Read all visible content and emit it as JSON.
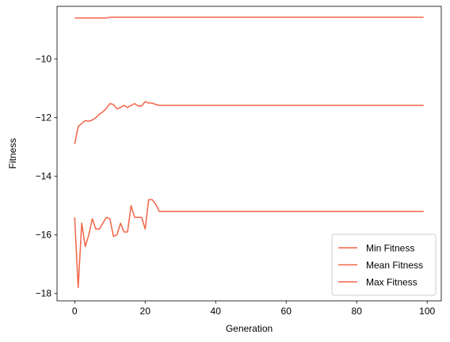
{
  "chart_data": {
    "type": "line",
    "title": "",
    "xlabel": "Generation",
    "ylabel": "Fitness",
    "xlim": [
      -5,
      104
    ],
    "ylim": [
      -18.25,
      -8.2
    ],
    "xticks": [
      0,
      20,
      40,
      60,
      80,
      100
    ],
    "yticks": [
      -18,
      -16,
      -14,
      -12,
      -10
    ],
    "xtick_labels": [
      "0",
      "20",
      "40",
      "60",
      "80",
      "100"
    ],
    "ytick_labels": [
      "−18",
      "−16",
      "−14",
      "−12",
      "−10"
    ],
    "grid": false,
    "legend": "lower-right",
    "color": "#f26447",
    "x": [
      0,
      1,
      2,
      3,
      4,
      5,
      6,
      7,
      8,
      9,
      10,
      11,
      12,
      13,
      14,
      15,
      16,
      17,
      18,
      19,
      20,
      21,
      22,
      23,
      24,
      25,
      26,
      27,
      28,
      29,
      30,
      31,
      32,
      33,
      34,
      35,
      36,
      37,
      38,
      39,
      40,
      41,
      42,
      43,
      44,
      45,
      46,
      47,
      48,
      49,
      50,
      51,
      52,
      53,
      54,
      55,
      56,
      57,
      58,
      59,
      60,
      61,
      62,
      63,
      64,
      65,
      66,
      67,
      68,
      69,
      70,
      71,
      72,
      73,
      74,
      75,
      76,
      77,
      78,
      79,
      80,
      81,
      82,
      83,
      84,
      85,
      86,
      87,
      88,
      89,
      90,
      91,
      92,
      93,
      94,
      95,
      96,
      97,
      98,
      99
    ],
    "series": [
      {
        "name": "Min Fitness",
        "values": [
          -15.4,
          -17.8,
          -15.6,
          -16.4,
          -16.0,
          -15.45,
          -15.8,
          -15.8,
          -15.6,
          -15.4,
          -15.45,
          -16.05,
          -16.0,
          -15.6,
          -15.9,
          -15.9,
          -15.0,
          -15.4,
          -15.4,
          -15.4,
          -15.8,
          -14.8,
          -14.8,
          -14.95,
          -15.2,
          -15.2,
          -15.2,
          -15.2,
          -15.2,
          -15.2,
          -15.2,
          -15.2,
          -15.2,
          -15.2,
          -15.2,
          -15.2,
          -15.2,
          -15.2,
          -15.2,
          -15.2,
          -15.2,
          -15.2,
          -15.2,
          -15.2,
          -15.2,
          -15.2,
          -15.2,
          -15.2,
          -15.2,
          -15.2,
          -15.2,
          -15.2,
          -15.2,
          -15.2,
          -15.2,
          -15.2,
          -15.2,
          -15.2,
          -15.2,
          -15.2,
          -15.2,
          -15.2,
          -15.2,
          -15.2,
          -15.2,
          -15.2,
          -15.2,
          -15.2,
          -15.2,
          -15.2,
          -15.2,
          -15.2,
          -15.2,
          -15.2,
          -15.2,
          -15.2,
          -15.2,
          -15.2,
          -15.2,
          -15.2,
          -15.2,
          -15.2,
          -15.2,
          -15.2,
          -15.2,
          -15.2,
          -15.2,
          -15.2,
          -15.2,
          -15.2,
          -15.2,
          -15.2,
          -15.2,
          -15.2,
          -15.2,
          -15.2,
          -15.2,
          -15.2,
          -15.2,
          -15.2
        ]
      },
      {
        "name": "Mean Fitness",
        "values": [
          -12.9,
          -12.3,
          -12.2,
          -12.1,
          -12.12,
          -12.08,
          -12.0,
          -11.88,
          -11.8,
          -11.68,
          -11.52,
          -11.55,
          -11.7,
          -11.65,
          -11.58,
          -11.65,
          -11.58,
          -11.52,
          -11.6,
          -11.6,
          -11.45,
          -11.5,
          -11.5,
          -11.55,
          -11.58,
          -11.58,
          -11.58,
          -11.58,
          -11.58,
          -11.58,
          -11.58,
          -11.58,
          -11.58,
          -11.58,
          -11.58,
          -11.58,
          -11.58,
          -11.58,
          -11.58,
          -11.58,
          -11.58,
          -11.58,
          -11.58,
          -11.58,
          -11.58,
          -11.58,
          -11.58,
          -11.58,
          -11.58,
          -11.58,
          -11.58,
          -11.58,
          -11.58,
          -11.58,
          -11.58,
          -11.58,
          -11.58,
          -11.58,
          -11.58,
          -11.58,
          -11.58,
          -11.58,
          -11.58,
          -11.58,
          -11.58,
          -11.58,
          -11.58,
          -11.58,
          -11.58,
          -11.58,
          -11.58,
          -11.58,
          -11.58,
          -11.58,
          -11.58,
          -11.58,
          -11.58,
          -11.58,
          -11.58,
          -11.58,
          -11.58,
          -11.58,
          -11.58,
          -11.58,
          -11.58,
          -11.58,
          -11.58,
          -11.58,
          -11.58,
          -11.58,
          -11.58,
          -11.58,
          -11.58,
          -11.58,
          -11.58,
          -11.58,
          -11.58,
          -11.58,
          -11.58,
          -11.58
        ]
      },
      {
        "name": "Max Fitness",
        "values": [
          -8.6,
          -8.6,
          -8.6,
          -8.6,
          -8.6,
          -8.6,
          -8.6,
          -8.6,
          -8.6,
          -8.6,
          -8.57,
          -8.57,
          -8.57,
          -8.57,
          -8.57,
          -8.57,
          -8.57,
          -8.57,
          -8.57,
          -8.57,
          -8.57,
          -8.57,
          -8.57,
          -8.57,
          -8.57,
          -8.57,
          -8.57,
          -8.57,
          -8.57,
          -8.57,
          -8.57,
          -8.57,
          -8.57,
          -8.57,
          -8.57,
          -8.57,
          -8.57,
          -8.57,
          -8.57,
          -8.57,
          -8.57,
          -8.57,
          -8.57,
          -8.57,
          -8.57,
          -8.57,
          -8.57,
          -8.57,
          -8.57,
          -8.57,
          -8.57,
          -8.57,
          -8.57,
          -8.57,
          -8.57,
          -8.57,
          -8.57,
          -8.57,
          -8.57,
          -8.57,
          -8.57,
          -8.57,
          -8.57,
          -8.57,
          -8.57,
          -8.57,
          -8.57,
          -8.57,
          -8.57,
          -8.57,
          -8.57,
          -8.57,
          -8.57,
          -8.57,
          -8.57,
          -8.57,
          -8.57,
          -8.57,
          -8.57,
          -8.57,
          -8.57,
          -8.57,
          -8.57,
          -8.57,
          -8.57,
          -8.57,
          -8.57,
          -8.57,
          -8.57,
          -8.57,
          -8.57,
          -8.57,
          -8.57,
          -8.57,
          -8.57,
          -8.57,
          -8.57,
          -8.57,
          -8.57,
          -8.57
        ]
      }
    ]
  }
}
